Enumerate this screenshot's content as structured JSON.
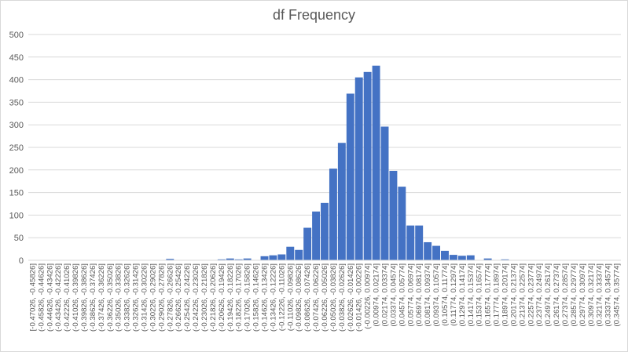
{
  "chart_data": {
    "type": "bar",
    "title": "df Frequency",
    "xlabel": "",
    "ylabel": "",
    "ylim": [
      0,
      500
    ],
    "yticks": [
      0,
      50,
      100,
      150,
      200,
      250,
      300,
      350,
      400,
      450,
      500
    ],
    "grid": true,
    "legend": "none",
    "bar_color": "#4472c4",
    "categories": [
      "[-0.47026, -0.45826]",
      "(-0.45826, -0.44626]",
      "(-0.44626, -0.43426]",
      "(-0.43426, -0.42226]",
      "(-0.42226, -0.41026]",
      "(-0.41026, -0.39826]",
      "(-0.39826, -0.38626]",
      "(-0.38626, -0.37426]",
      "(-0.37426, -0.36226]",
      "(-0.36226, -0.35026]",
      "(-0.35026, -0.33826]",
      "(-0.33826, -0.32626]",
      "(-0.32626, -0.31426]",
      "(-0.31426, -0.30226]",
      "(-0.30226, -0.29026]",
      "(-0.29026, -0.27826]",
      "(-0.27826, -0.26626]",
      "(-0.26626, -0.25426]",
      "(-0.25426, -0.24226]",
      "(-0.24226, -0.23026]",
      "(-0.23026, -0.21826]",
      "(-0.21826, -0.20626]",
      "(-0.20626, -0.19426]",
      "(-0.19426, -0.18226]",
      "(-0.18226, -0.17026]",
      "(-0.17026, -0.15826]",
      "(-0.15826, -0.14626]",
      "(-0.14626, -0.13426]",
      "(-0.13426, -0.12226]",
      "(-0.12226, -0.11026]",
      "(-0.11026, -0.09826]",
      "(-0.09826, -0.08626]",
      "(-0.08626, -0.07426]",
      "(-0.07426, -0.06226]",
      "(-0.06226, -0.05026]",
      "(-0.05026, -0.03826]",
      "(-0.03826, -0.02626]",
      "(-0.02626, -0.01426]",
      "(-0.01426, -0.00226]",
      "(-0.00226, 0.00974]",
      "(0.00974, 0.02174]",
      "(0.02174, 0.03374]",
      "(0.03374, 0.04574]",
      "(0.04574, 0.05774]",
      "(0.05774, 0.06974]",
      "(0.06974, 0.08174]",
      "(0.08174, 0.09374]",
      "(0.09374, 0.10574]",
      "(0.10574, 0.11774]",
      "(0.11774, 0.12974]",
      "(0.12974, 0.14174]",
      "(0.14174, 0.15374]",
      "(0.15374, 0.16574]",
      "(0.16574, 0.17774]",
      "(0.17774, 0.18974]",
      "(0.18974, 0.20174]",
      "(0.20174, 0.21374]",
      "(0.21374, 0.22574]",
      "(0.22574, 0.23774]",
      "(0.23774, 0.24974]",
      "(0.24974, 0.26174]",
      "(0.26174, 0.27374]",
      "(0.27374, 0.28574]",
      "(0.28574, 0.29774]",
      "(0.29774, 0.30974]",
      "(0.30974, 0.32174]",
      "(0.32174, 0.33374]",
      "(0.33374, 0.34574]",
      "(0.34574, 0.35774]"
    ],
    "values": [
      0,
      0,
      0,
      0,
      0,
      0,
      0,
      0,
      0,
      0,
      0,
      0,
      0,
      0,
      0,
      0,
      3,
      0,
      0,
      0,
      0,
      0,
      2,
      4,
      2,
      4,
      0,
      9,
      11,
      13,
      30,
      23,
      72,
      108,
      127,
      203,
      260,
      369,
      405,
      417,
      431,
      296,
      198,
      163,
      77,
      77,
      40,
      32,
      21,
      12,
      10,
      11,
      0,
      4,
      0,
      2,
      0,
      0,
      0,
      0,
      0,
      0,
      0,
      0,
      0,
      0,
      0,
      0,
      0
    ]
  }
}
